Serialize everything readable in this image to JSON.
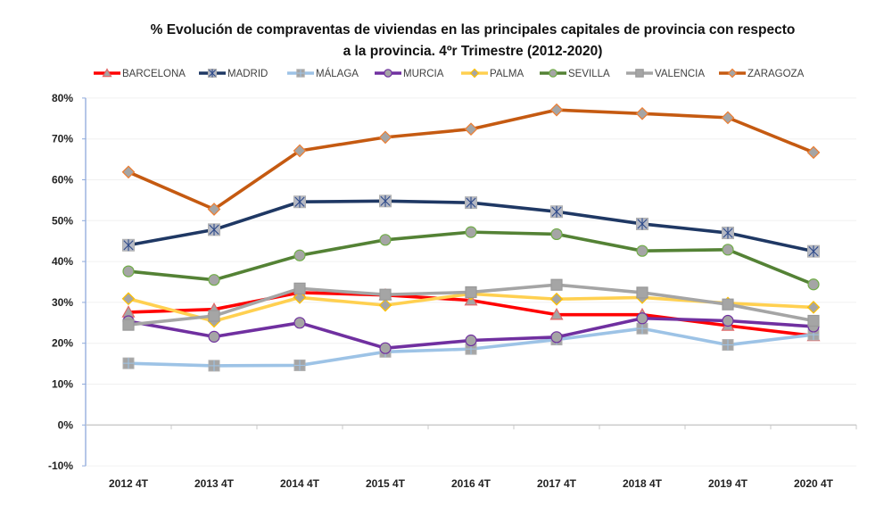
{
  "chart_data": {
    "type": "line",
    "title_lines": [
      "% Evolución de compraventas de viviendas en las principales capitales de provincia con respecto",
      "a la provincia.  4ºr Trimestre (2012-2020)"
    ],
    "title": "% Evolución de compraventas de viviendas en las principales capitales de provincia con respecto a la provincia. 4º Trimestre (2012-2020)",
    "xlabel": "",
    "ylabel": "",
    "categories": [
      "2012 4T",
      "2013 4T",
      "2014 4T",
      "2015 4T",
      "2016 4T",
      "2017 4T",
      "2018 4T",
      "2019 4T",
      "2020 4T"
    ],
    "ylim": [
      -10,
      80
    ],
    "yticks": [
      -10,
      0,
      10,
      20,
      30,
      40,
      50,
      60,
      70,
      80
    ],
    "ytick_labels": [
      "-10%",
      "0%",
      "10%",
      "20%",
      "30%",
      "40%",
      "50%",
      "60%",
      "70%",
      "80%"
    ],
    "grid": true,
    "legend_position": "top",
    "series": [
      {
        "name": "BARCELONA",
        "color": "#FF0000",
        "marker": "triangle",
        "marker_border": "#E06666",
        "values": [
          27.6,
          28.3,
          32.4,
          31.8,
          30.5,
          27.0,
          27.0,
          24.3,
          21.8
        ]
      },
      {
        "name": "MADRID",
        "color": "#1F3864",
        "marker": "x-square",
        "marker_border": "#2F4B8A",
        "values": [
          44.0,
          47.8,
          54.6,
          54.8,
          54.4,
          52.2,
          49.2,
          47.0,
          42.5
        ]
      },
      {
        "name": "MÁLAGA",
        "color": "#9DC3E6",
        "marker": "plus-square",
        "marker_border": "#9DC3E6",
        "values": [
          15.1,
          14.5,
          14.6,
          17.9,
          18.6,
          20.9,
          23.6,
          19.6,
          22.1
        ]
      },
      {
        "name": "MURCIA",
        "color": "#7030A0",
        "marker": "circle",
        "marker_border": "#7030A0",
        "values": [
          25.4,
          21.6,
          25.0,
          18.8,
          20.7,
          21.5,
          26.1,
          25.5,
          24.1
        ]
      },
      {
        "name": "PALMA",
        "color": "#FFD050",
        "marker": "diamond",
        "marker_border": "#FFC000",
        "values": [
          30.9,
          25.4,
          31.2,
          29.3,
          32.1,
          30.8,
          31.2,
          29.8,
          28.8
        ]
      },
      {
        "name": "SEVILLA",
        "color": "#548235",
        "marker": "circle",
        "marker_border": "#70AD47",
        "values": [
          37.6,
          35.5,
          41.5,
          45.3,
          47.2,
          46.7,
          42.6,
          42.9,
          34.4
        ]
      },
      {
        "name": "VALENCIA",
        "color": "#A5A5A5",
        "marker": "square",
        "marker_border": "#A5A5A5",
        "values": [
          24.5,
          26.7,
          33.4,
          31.9,
          32.5,
          34.3,
          32.4,
          29.5,
          25.5
        ]
      },
      {
        "name": "ZARAGOZA",
        "color": "#C55A11",
        "marker": "diamond",
        "marker_border": "#ED7D31",
        "values": [
          61.9,
          52.8,
          67.1,
          70.4,
          72.4,
          77.1,
          76.2,
          75.2,
          66.7
        ]
      }
    ],
    "marker_fill": "#A5A5A5"
  }
}
